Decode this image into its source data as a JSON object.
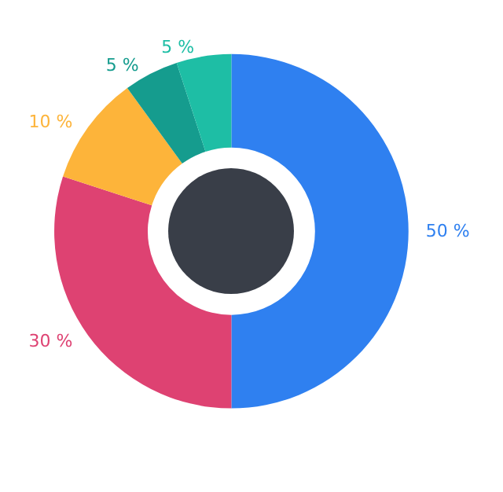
{
  "chart_data": {
    "type": "donut",
    "categories": [
      null,
      null,
      null,
      null,
      null
    ],
    "values": [
      50,
      30,
      10,
      5,
      5
    ],
    "colors": [
      "#2f80f0",
      "#de4272",
      "#fdb43a",
      "#159c8e",
      "#1ebea5"
    ],
    "value_labels": [
      "50 %",
      "30 %",
      "10 %",
      "5 %",
      "5 %"
    ]
  }
}
